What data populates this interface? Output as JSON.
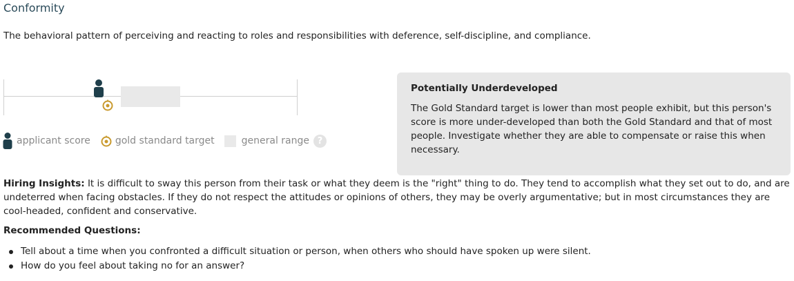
{
  "section": {
    "title": "Conformity",
    "description": "The behavioral pattern of perceiving and reacting to roles and responsibilities with deference, self-discipline, and compliance."
  },
  "scale": {
    "applicant_score_pct": 32.5,
    "gold_standard_target_pct": 35.5,
    "general_range_pct": [
      40,
      60
    ],
    "colors": {
      "applicant": "#1f3f4b",
      "target": "#c99a2e",
      "range": "#e9e9e9"
    }
  },
  "legend": {
    "applicant_label": "applicant score",
    "target_label": "gold standard target",
    "range_label": "general range",
    "applicant_icon": "person-icon",
    "target_icon": "target-icon",
    "help_icon": "help-icon",
    "help_glyph": "?"
  },
  "infobox": {
    "heading": "Potentially Underdeveloped",
    "body": "The Gold Standard target is lower than most people exhibit, but this person's score is more under-developed than both the Gold Standard and that of most people. Investigate whether they are able to compensate or raise this when necessary."
  },
  "insights": {
    "label": "Hiring Insights:",
    "text": " It is difficult to sway this person from their task or what they deem is the \"right\" thing to do. They tend to accomplish what they set out to do, and are undeterred when facing obstacles. If they do not respect the attitudes or opinions of others, they may be overly argumentative; but in most circumstances they are cool-headed, confident and conservative."
  },
  "recommended": {
    "heading": "Recommended Questions:",
    "questions": [
      "Tell about a time when you confronted a difficult situation or person, when others who should have spoken up were silent.",
      "How do you feel about taking no for an answer?"
    ]
  }
}
